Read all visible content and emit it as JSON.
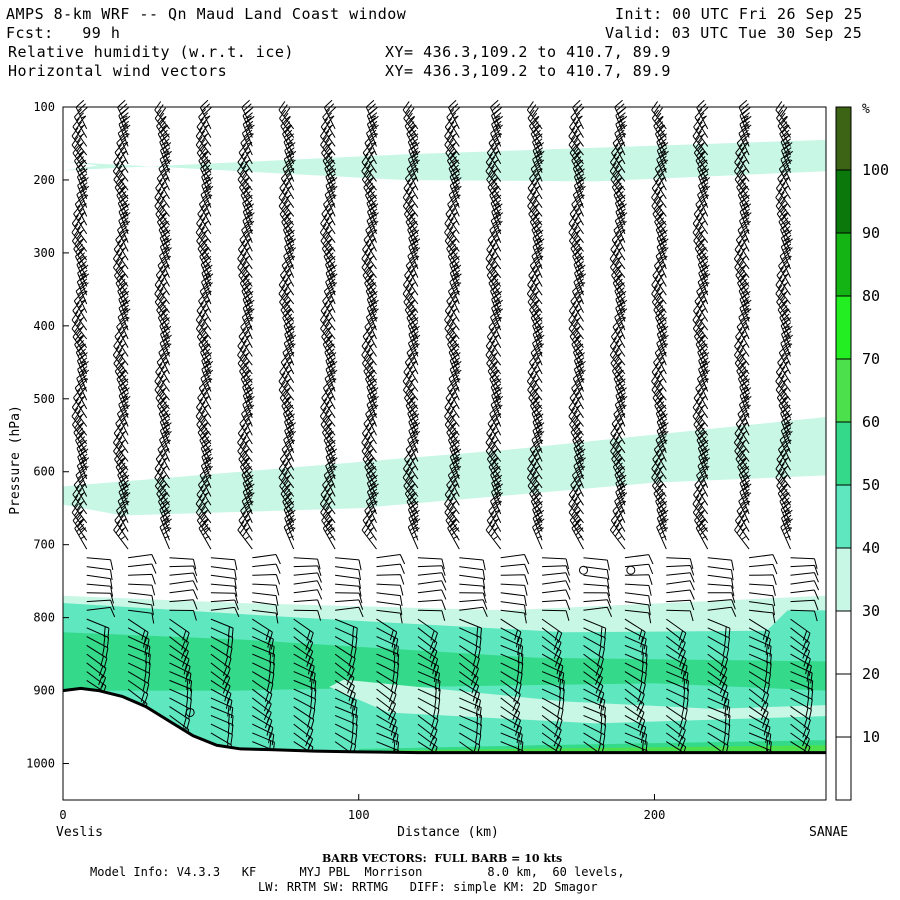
{
  "header": {
    "title": "AMPS 8-km WRF -- Qn Maud Land Coast window",
    "init": "Init: 00 UTC Fri 26 Sep 25",
    "fcst": "Fcst:   99 h",
    "valid": "Valid: 03 UTC Tue 30 Sep 25",
    "field1": "Relative humidity (w.r.t. ice)",
    "field1_xy": "XY= 436.3,109.2 to 410.7, 89.9",
    "field2": "Horizontal wind vectors",
    "field2_xy": "XY= 436.3,109.2 to 410.7, 89.9"
  },
  "footer": {
    "barb_note": "BARB VECTORS:  FULL BARB = 10 kts",
    "model_info_1": "Model Info: V4.3.3   KF      MYJ PBL  Morrison         8.0 km,  60 levels,",
    "model_info_2": "LW: RRTM SW: RRTMG   DIFF: simple KM: 2D Smagor"
  },
  "colors": {
    "rh_30_40": "#c8f7e6",
    "rh_40_50": "#5fe8c0",
    "rh_50_60": "#34d98a",
    "rh_60_70": "#4ce04c",
    "rh_70_80": "#22ee22",
    "rh_80_90": "#14b414",
    "rh_90_100": "#0a780a",
    "rh_100": "#3c6414",
    "terrain": "#000000"
  },
  "chart_data": {
    "type": "cross-section",
    "xlabel": "Distance (km)",
    "ylabel": "Pressure (hPa)",
    "x_start_label": "Veslis",
    "x_end_label": "SANAE",
    "xlim": [
      0,
      258
    ],
    "ylim": [
      1050,
      100
    ],
    "x_ticks": [
      0,
      100,
      200
    ],
    "y_ticks": [
      100,
      200,
      300,
      400,
      500,
      600,
      700,
      800,
      900,
      1000
    ],
    "colorbar": {
      "unit": "%",
      "levels": [
        10,
        20,
        30,
        40,
        50,
        60,
        70,
        80,
        90,
        100
      ],
      "colors": [
        "#ffffff",
        "#ffffff",
        "#ffffff",
        "#c8f7e6",
        "#5fe8c0",
        "#34d98a",
        "#4ce04c",
        "#22ee22",
        "#14b414",
        "#0a780a",
        "#3c6414"
      ]
    },
    "rh_regions": [
      {
        "name": "upper moist layer 30-40%",
        "level": 30,
        "points": [
          [
            0,
            175
          ],
          [
            12,
            180
          ],
          [
            0,
            187
          ],
          [
            115,
            165
          ],
          [
            258,
            145
          ],
          [
            258,
            188
          ],
          [
            180,
            202
          ],
          [
            115,
            200
          ]
        ]
      },
      {
        "name": "mid moist layer 30-40%",
        "level": 30,
        "points": [
          [
            0,
            645
          ],
          [
            0,
            620
          ],
          [
            60,
            600
          ],
          [
            150,
            570
          ],
          [
            258,
            525
          ],
          [
            258,
            605
          ],
          [
            200,
            615
          ],
          [
            100,
            650
          ],
          [
            20,
            660
          ]
        ]
      },
      {
        "name": "lower moist layer 30-40%",
        "level": 30,
        "points": [
          [
            0,
            770
          ],
          [
            60,
            780
          ],
          [
            150,
            790
          ],
          [
            258,
            770
          ],
          [
            258,
            1000
          ],
          [
            0,
            1000
          ]
        ]
      },
      {
        "name": "lower moist layer 40-50%",
        "level": 40,
        "points": [
          [
            0,
            780
          ],
          [
            80,
            800
          ],
          [
            170,
            820
          ],
          [
            238,
            818
          ],
          [
            245,
            790
          ],
          [
            258,
            790
          ],
          [
            258,
            1000
          ],
          [
            0,
            1000
          ]
        ]
      },
      {
        "name": "lower moist layer 50-60%",
        "level": 50,
        "points": [
          [
            0,
            820
          ],
          [
            60,
            830
          ],
          [
            160,
            855
          ],
          [
            258,
            860
          ],
          [
            258,
            900
          ],
          [
            200,
            890
          ],
          [
            120,
            895
          ],
          [
            60,
            900
          ],
          [
            0,
            900
          ]
        ]
      },
      {
        "name": "near-surface 50-60%",
        "level": 50,
        "points": [
          [
            100,
            980
          ],
          [
            160,
            975
          ],
          [
            258,
            968
          ],
          [
            258,
            985
          ],
          [
            100,
            985
          ]
        ]
      },
      {
        "name": "near-surface 60-70%",
        "level": 60,
        "points": [
          [
            110,
            982
          ],
          [
            258,
            975
          ],
          [
            258,
            985
          ],
          [
            110,
            986
          ]
        ]
      },
      {
        "name": "dry tongue 30-40%",
        "level": 30,
        "points": [
          [
            95,
            885
          ],
          [
            170,
            915
          ],
          [
            220,
            925
          ],
          [
            258,
            920
          ],
          [
            258,
            935
          ],
          [
            180,
            945
          ],
          [
            110,
            930
          ],
          [
            90,
            895
          ]
        ]
      }
    ],
    "terrain": [
      [
        0,
        900
      ],
      [
        6,
        897
      ],
      [
        12,
        900
      ],
      [
        20,
        908
      ],
      [
        28,
        922
      ],
      [
        36,
        942
      ],
      [
        44,
        962
      ],
      [
        52,
        975
      ],
      [
        60,
        980
      ],
      [
        70,
        981
      ],
      [
        85,
        983
      ],
      [
        100,
        984
      ],
      [
        120,
        985
      ],
      [
        258,
        985
      ]
    ],
    "barb_columns_km": [
      8,
      22,
      36,
      50,
      64,
      78,
      92,
      106,
      120,
      134,
      148,
      162,
      176,
      190,
      204,
      218,
      232,
      246
    ],
    "wind_regimes": [
      {
        "layer": "100-700 hPa",
        "direction_deg": 330,
        "speed_kts": 35
      },
      {
        "layer": "720-790 hPa",
        "direction_deg": 90,
        "speed_kts": 10
      },
      {
        "layer": "800-1000 hPa",
        "direction_deg": 120,
        "speed_kts": 20
      }
    ],
    "calm_markers": [
      [
        43,
        930
      ],
      [
        176,
        735
      ],
      [
        192,
        735
      ]
    ]
  }
}
